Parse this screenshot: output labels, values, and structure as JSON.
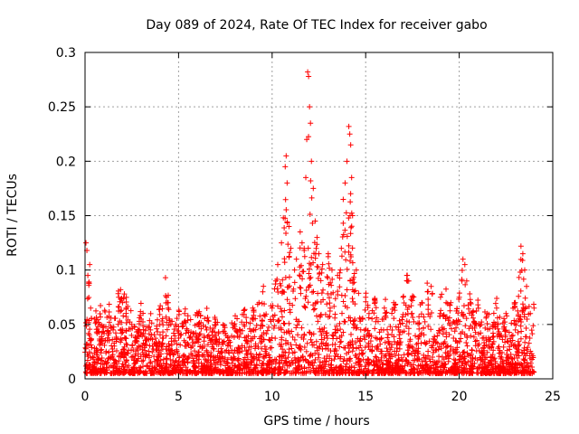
{
  "chart_data": {
    "type": "scatter",
    "title": "Day 089 of 2024, Rate Of TEC Index for receiver gabo",
    "xlabel": "GPS time / hours",
    "ylabel": "ROTI / TECUs",
    "xlim": [
      0,
      25
    ],
    "ylim": [
      0,
      0.3
    ],
    "xticks": [
      0,
      5,
      10,
      15,
      20,
      25
    ],
    "yticks": [
      0,
      0.05,
      0.1,
      0.15,
      0.2,
      0.25,
      0.3
    ],
    "xtick_labels": [
      "0",
      "5",
      "10",
      "15",
      "20",
      "25"
    ],
    "ytick_labels": [
      "0",
      "0.05",
      "0.1",
      "0.15",
      "0.2",
      "0.25",
      "0.3"
    ],
    "grid": true,
    "marker": "+",
    "color": "#ff0000",
    "x_range_observed": [
      0,
      24
    ],
    "series": [
      {
        "name": "ROTI",
        "description": "dense scatter, ~0.005-0.05 background with spikes",
        "points": [
          [
            0.05,
            0.125
          ],
          [
            0.1,
            0.118
          ],
          [
            0.15,
            0.095
          ],
          [
            0.2,
            0.088
          ],
          [
            0.25,
            0.105
          ],
          [
            0.3,
            0.065
          ],
          [
            0.5,
            0.055
          ],
          [
            0.8,
            0.05
          ],
          [
            1.0,
            0.048
          ],
          [
            1.3,
            0.052
          ],
          [
            1.5,
            0.045
          ],
          [
            1.8,
            0.075
          ],
          [
            1.9,
            0.082
          ],
          [
            2.0,
            0.07
          ],
          [
            2.1,
            0.078
          ],
          [
            2.2,
            0.065
          ],
          [
            2.5,
            0.05
          ],
          [
            3.0,
            0.055
          ],
          [
            3.5,
            0.045
          ],
          [
            4.0,
            0.05
          ],
          [
            4.3,
            0.093
          ],
          [
            4.35,
            0.075
          ],
          [
            4.4,
            0.07
          ],
          [
            4.5,
            0.055
          ],
          [
            5.0,
            0.048
          ],
          [
            5.3,
            0.052
          ],
          [
            5.5,
            0.058
          ],
          [
            6.0,
            0.05
          ],
          [
            6.1,
            0.048
          ],
          [
            6.5,
            0.045
          ],
          [
            7.0,
            0.04
          ],
          [
            7.5,
            0.042
          ],
          [
            8.0,
            0.048
          ],
          [
            8.5,
            0.05
          ],
          [
            9.0,
            0.055
          ],
          [
            9.3,
            0.07
          ],
          [
            9.5,
            0.08
          ],
          [
            10.0,
            0.065
          ],
          [
            10.2,
            0.09
          ],
          [
            10.3,
            0.105
          ],
          [
            10.5,
            0.125
          ],
          [
            10.6,
            0.148
          ],
          [
            10.7,
            0.195
          ],
          [
            10.75,
            0.205
          ],
          [
            10.8,
            0.18
          ],
          [
            10.9,
            0.14
          ],
          [
            11.0,
            0.12
          ],
          [
            11.2,
            0.1
          ],
          [
            11.3,
            0.11
          ],
          [
            11.5,
            0.135
          ],
          [
            11.6,
            0.125
          ],
          [
            11.8,
            0.185
          ],
          [
            11.85,
            0.22
          ],
          [
            11.9,
            0.282
          ],
          [
            11.95,
            0.278
          ],
          [
            12.0,
            0.25
          ],
          [
            12.05,
            0.235
          ],
          [
            12.1,
            0.2
          ],
          [
            12.2,
            0.175
          ],
          [
            12.3,
            0.145
          ],
          [
            12.4,
            0.13
          ],
          [
            12.5,
            0.115
          ],
          [
            12.7,
            0.105
          ],
          [
            13.0,
            0.115
          ],
          [
            13.2,
            0.1
          ],
          [
            13.5,
            0.095
          ],
          [
            13.7,
            0.12
          ],
          [
            13.8,
            0.165
          ],
          [
            13.9,
            0.18
          ],
          [
            14.0,
            0.2
          ],
          [
            14.1,
            0.232
          ],
          [
            14.15,
            0.225
          ],
          [
            14.2,
            0.215
          ],
          [
            14.25,
            0.185
          ],
          [
            14.3,
            0.15
          ],
          [
            14.5,
            0.1
          ],
          [
            15.0,
            0.075
          ],
          [
            15.5,
            0.07
          ],
          [
            16.0,
            0.065
          ],
          [
            16.5,
            0.07
          ],
          [
            17.0,
            0.075
          ],
          [
            17.2,
            0.095
          ],
          [
            17.3,
            0.09
          ],
          [
            17.5,
            0.072
          ],
          [
            18.0,
            0.07
          ],
          [
            18.3,
            0.08
          ],
          [
            18.5,
            0.085
          ],
          [
            19.0,
            0.075
          ],
          [
            19.3,
            0.07
          ],
          [
            19.5,
            0.068
          ],
          [
            20.0,
            0.075
          ],
          [
            20.2,
            0.11
          ],
          [
            20.3,
            0.105
          ],
          [
            20.4,
            0.09
          ],
          [
            20.6,
            0.07
          ],
          [
            21.0,
            0.068
          ],
          [
            21.5,
            0.06
          ],
          [
            22.0,
            0.065
          ],
          [
            22.5,
            0.06
          ],
          [
            23.0,
            0.07
          ],
          [
            23.3,
            0.122
          ],
          [
            23.4,
            0.115
          ],
          [
            23.5,
            0.1
          ],
          [
            23.6,
            0.085
          ],
          [
            23.8,
            0.06
          ],
          [
            24.0,
            0.065
          ]
        ]
      }
    ]
  }
}
